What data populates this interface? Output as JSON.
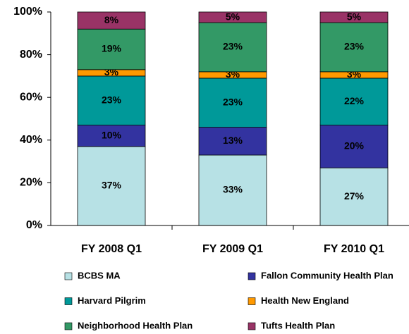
{
  "chart_data": {
    "type": "stacked_bar",
    "categories": [
      "FY 2008 Q1",
      "FY 2009 Q1",
      "FY 2010 Q1"
    ],
    "series": [
      {
        "name": "BCBS MA",
        "color": "#b7e1e5",
        "values": [
          37,
          33,
          27
        ],
        "value_labels": [
          "37%",
          "33%",
          "27%"
        ]
      },
      {
        "name": "Fallon Community Health Plan",
        "color": "#3333a0",
        "values": [
          10,
          13,
          20
        ],
        "value_labels": [
          "10%",
          "13%",
          "20%"
        ]
      },
      {
        "name": "Harvard Pilgrim",
        "color": "#009999",
        "values": [
          23,
          23,
          22
        ],
        "value_labels": [
          "23%",
          "23%",
          "22%"
        ]
      },
      {
        "name": "Health New England",
        "color": "#ff9900",
        "values": [
          3,
          3,
          3
        ],
        "value_labels": [
          "3%",
          "3%",
          "3%"
        ]
      },
      {
        "name": "Neighborhood Health Plan",
        "color": "#339966",
        "values": [
          19,
          23,
          23
        ],
        "value_labels": [
          "19%",
          "23%",
          "23%"
        ]
      },
      {
        "name": "Tufts Health Plan",
        "color": "#993366",
        "values": [
          8,
          5,
          5
        ],
        "value_labels": [
          "8%",
          "5%",
          "5%"
        ]
      }
    ],
    "ylim": [
      0,
      100
    ],
    "yticks": [
      {
        "value": 0,
        "label": "0%"
      },
      {
        "value": 20,
        "label": "20%"
      },
      {
        "value": 40,
        "label": "40%"
      },
      {
        "value": 60,
        "label": "60%"
      },
      {
        "value": 80,
        "label": "80%"
      },
      {
        "value": 100,
        "label": "100%"
      }
    ],
    "legend": "bottom"
  }
}
